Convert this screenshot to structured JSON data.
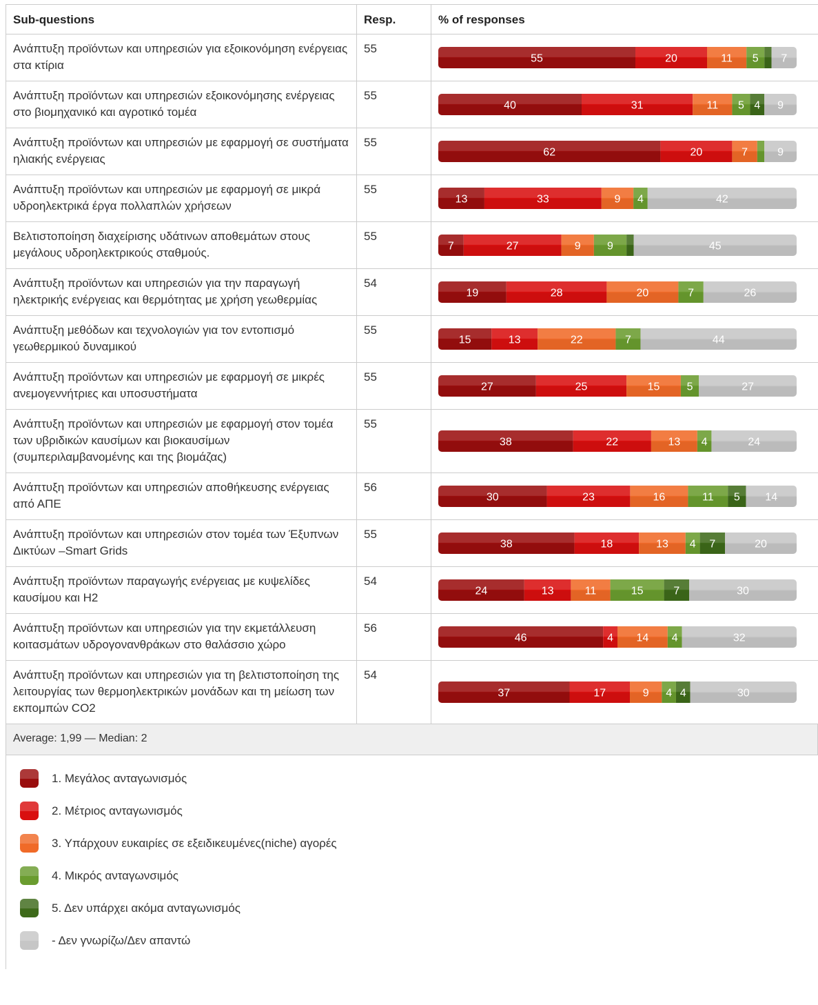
{
  "header": {
    "col1": "Sub-questions",
    "col2": "Resp.",
    "col3": "% of responses"
  },
  "colors": [
    "#9a0e0e",
    "#d90f0f",
    "#f06a28",
    "#6a9c2f",
    "#3e6a1a",
    "#c6c6c6"
  ],
  "rows": [
    {
      "label": "Ανάπτυξη προϊόντων και υπηρεσιών για εξοικονόμηση ενέργειας στα κτίρια",
      "resp": 55,
      "values": [
        55,
        20,
        11,
        5,
        2,
        7
      ]
    },
    {
      "label": "Ανάπτυξη προϊόντων και υπηρεσιών εξοικονόμησης ενέργειας στο βιομηχανικό και αγροτικό τομέα",
      "resp": 55,
      "values": [
        40,
        31,
        11,
        5,
        4,
        9
      ]
    },
    {
      "label": "Ανάπτυξη προϊόντων και υπηρεσιών με εφαρμογή σε συστήματα ηλιακής ενέργειας",
      "resp": 55,
      "values": [
        62,
        20,
        7,
        2,
        0,
        9
      ]
    },
    {
      "label": "Ανάπτυξη προϊόντων και υπηρεσιών με εφαρμογή σε μικρά υδροηλεκτρικά έργα πολλαπλών χρήσεων",
      "resp": 55,
      "values": [
        13,
        33,
        9,
        4,
        0,
        42
      ]
    },
    {
      "label": "Βελτιστοποίηση διαχείρισης υδάτινων αποθεμάτων στους μεγάλους υδροηλεκτρικούς σταθμούς.",
      "resp": 55,
      "values": [
        7,
        27,
        9,
        9,
        2,
        45
      ]
    },
    {
      "label": "Ανάπτυξη προϊόντων και υπηρεσιών για την παραγωγή ηλεκτρικής ενέργειας και θερμότητας με χρήση γεωθερμίας",
      "resp": 54,
      "values": [
        19,
        28,
        20,
        7,
        0,
        26
      ]
    },
    {
      "label": "Ανάπτυξη μεθόδων και τεχνολογιών για τον εντοπισμό γεωθερμικού δυναμικού",
      "resp": 55,
      "values": [
        15,
        13,
        22,
        7,
        0,
        44
      ]
    },
    {
      "label": "Ανάπτυξη προϊόντων και υπηρεσιών με εφαρμογή σε μικρές ανεμογεννήτριες και υποσυστήματα",
      "resp": 55,
      "values": [
        27,
        25,
        15,
        5,
        0,
        27
      ]
    },
    {
      "label": "Ανάπτυξη προϊόντων και υπηρεσιών με εφαρμογή στον τομέα των υβριδικών καυσίμων και βιοκαυσίμων (συμπεριλαμβανομένης και της βιομάζας)",
      "resp": 55,
      "values": [
        38,
        22,
        13,
        4,
        0,
        24
      ]
    },
    {
      "label": "Ανάπτυξη προϊόντων και υπηρεσιών αποθήκευσης ενέργειας από ΑΠΕ",
      "resp": 56,
      "values": [
        30,
        23,
        16,
        11,
        5,
        14
      ]
    },
    {
      "label": "Ανάπτυξη προϊόντων και υπηρεσιών στον τομέα των Έξυπνων Δικτύων –Smart Grids",
      "resp": 55,
      "values": [
        38,
        18,
        13,
        4,
        7,
        20
      ]
    },
    {
      "label": "Ανάπτυξη προϊόντων παραγωγής ενέργειας με κυψελίδες καυσίμου και H2",
      "resp": 54,
      "values": [
        24,
        13,
        11,
        15,
        7,
        30
      ]
    },
    {
      "label": "Ανάπτυξη προϊόντων και υπηρεσιών για την εκμετάλλευση κοιτασμάτων υδρογονανθράκων στο θαλάσσιο χώρο",
      "resp": 56,
      "values": [
        46,
        4,
        14,
        4,
        0,
        32
      ]
    },
    {
      "label": "Ανάπτυξη προϊόντων και υπηρεσιών για τη βελτιστοποίηση της λειτουργίας των θερμοηλεκτρικών μονάδων και τη μείωση των εκπομπών CO2",
      "resp": 54,
      "values": [
        37,
        17,
        9,
        4,
        4,
        30
      ]
    }
  ],
  "footer": "Average: 1,99 — Median: 2",
  "legend": [
    "1. Μεγάλος ανταγωνισμός",
    "2. Μέτριος ανταγωνισμός",
    "3. Υπάρχουν ευκαιρίες σε εξειδικευμένες(niche) αγορές",
    "4. Μικρός ανταγωνσιμός",
    "5. Δεν υπάρχει ακόμα ανταγωνισμός",
    "- Δεν γνωρίζω/Δεν απαντώ"
  ]
}
